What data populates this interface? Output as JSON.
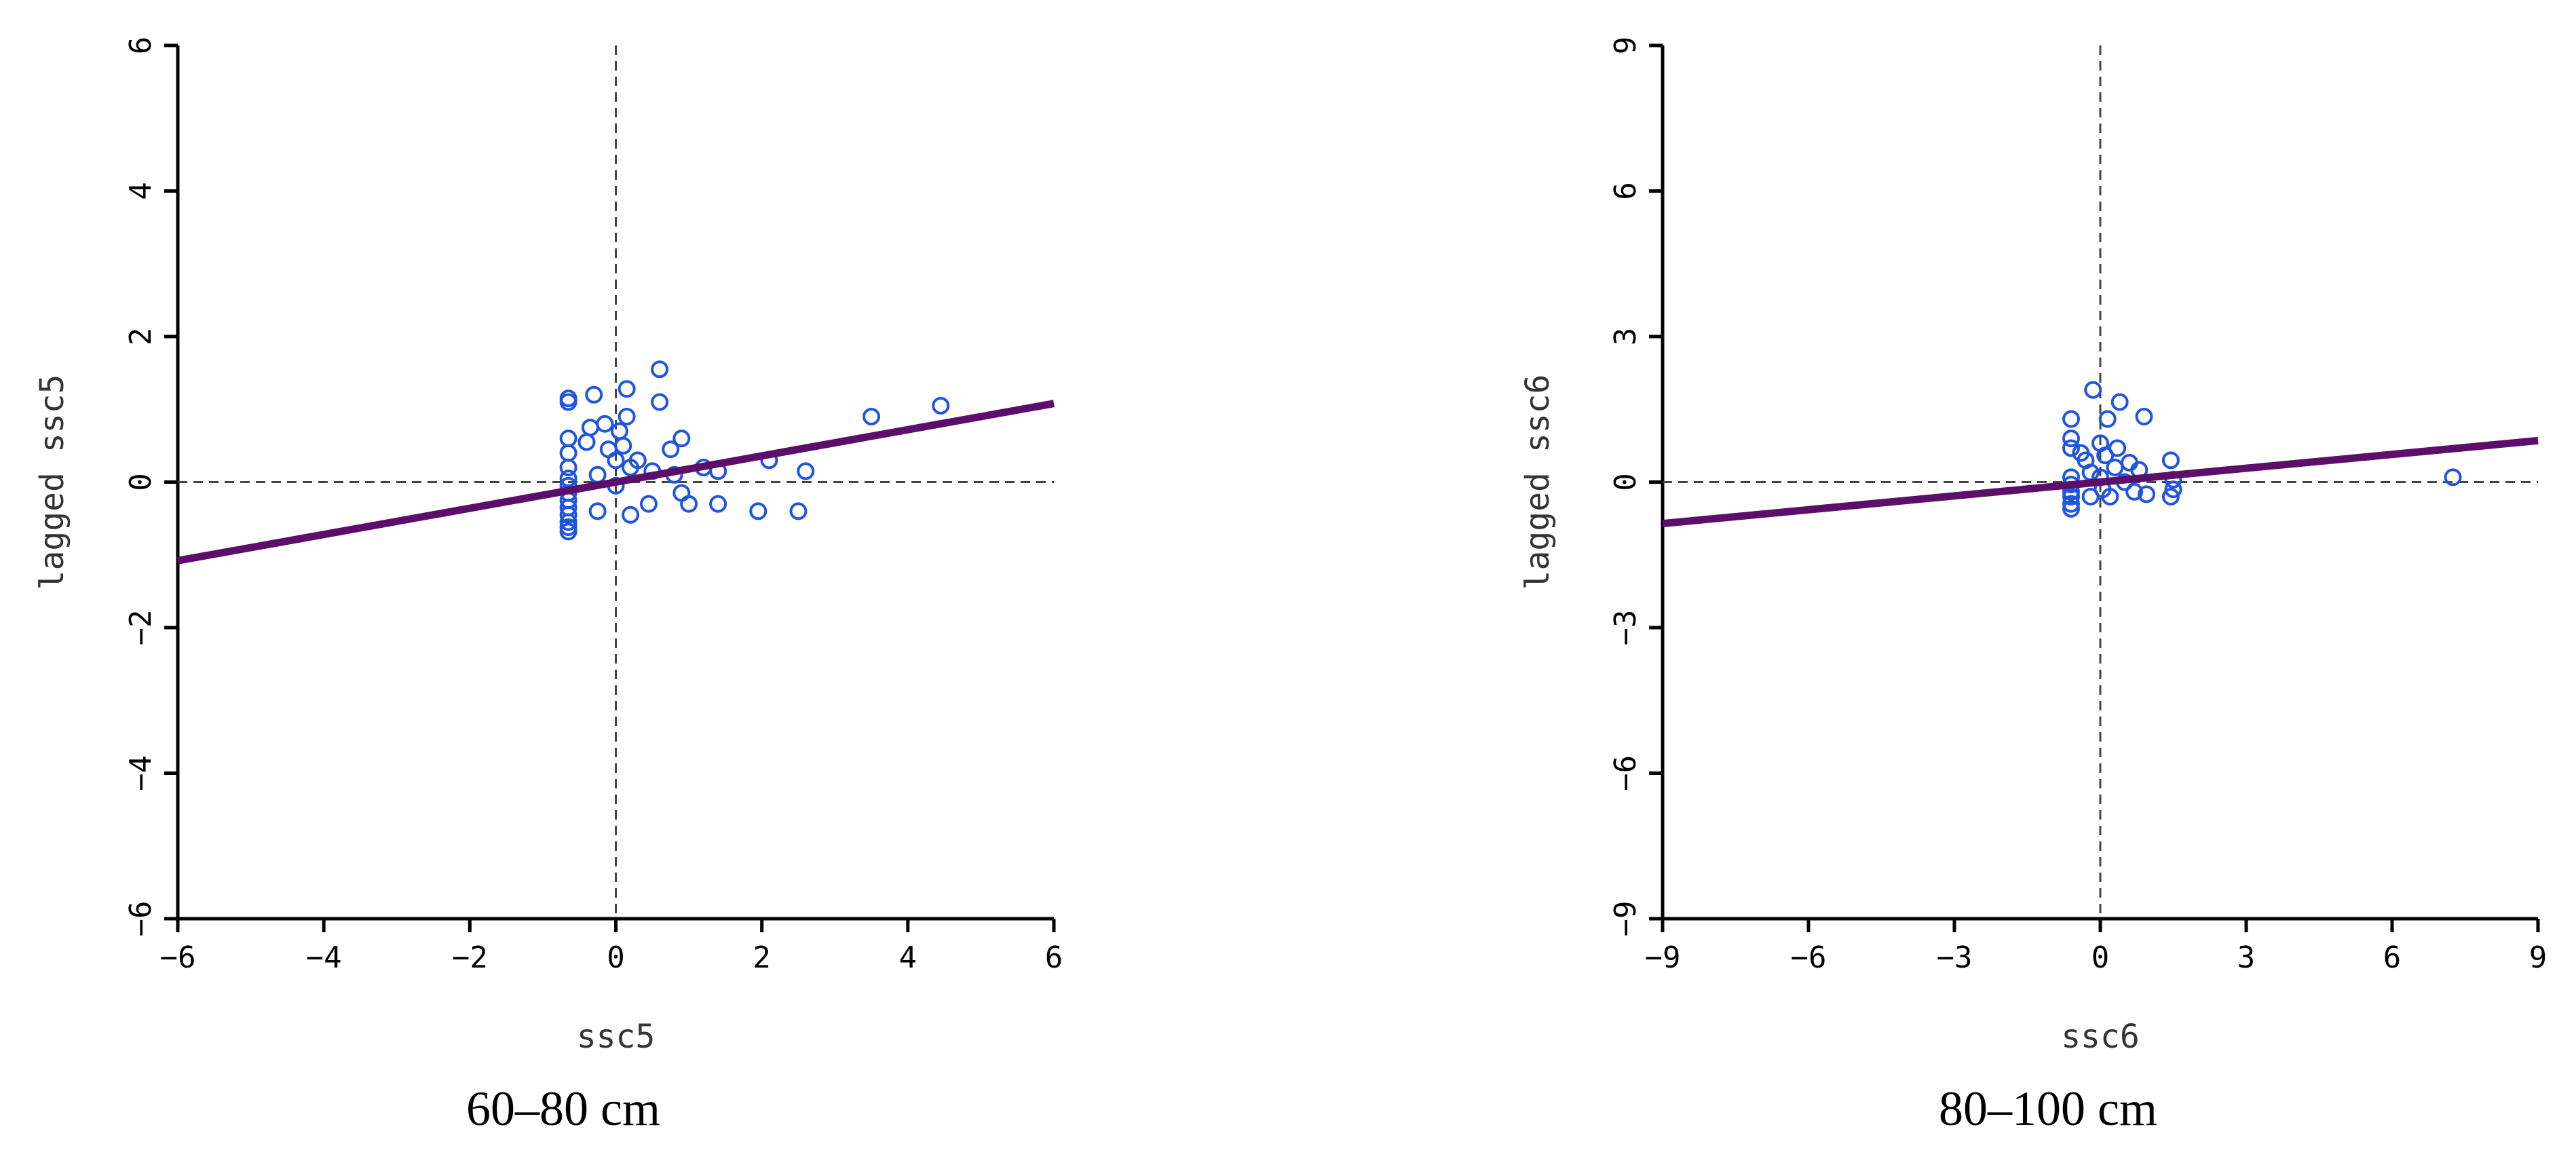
{
  "chart_data": [
    {
      "type": "scatter",
      "xlabel": "ssc5",
      "ylabel": "lagged ssc5",
      "caption": "60–80 cm",
      "xlim": [
        -6,
        6
      ],
      "ylim": [
        -6,
        6
      ],
      "xticks": [
        -6,
        -4,
        -2,
        0,
        2,
        4,
        6
      ],
      "yticks": [
        -6,
        -4,
        -2,
        0,
        2,
        4,
        6
      ],
      "xtick_labels": [
        "−6",
        "−4",
        "−2",
        "0",
        "2",
        "4",
        "6"
      ],
      "ytick_labels": [
        "−6",
        "−4",
        "−2",
        "0",
        "2",
        "4",
        "6"
      ],
      "grid": false,
      "reference_lines": {
        "x": 0,
        "y": 0
      },
      "regression": {
        "slope": 0.18,
        "intercept": 0.0
      },
      "points": [
        [
          -0.65,
          1.15
        ],
        [
          -0.65,
          1.1
        ],
        [
          -0.65,
          0.6
        ],
        [
          -0.65,
          0.4
        ],
        [
          -0.65,
          0.2
        ],
        [
          -0.65,
          0.05
        ],
        [
          -0.65,
          -0.05
        ],
        [
          -0.65,
          -0.15
        ],
        [
          -0.65,
          -0.25
        ],
        [
          -0.65,
          -0.35
        ],
        [
          -0.65,
          -0.45
        ],
        [
          -0.65,
          -0.55
        ],
        [
          -0.65,
          -0.62
        ],
        [
          -0.65,
          -0.68
        ],
        [
          -0.4,
          0.55
        ],
        [
          -0.35,
          0.75
        ],
        [
          -0.3,
          1.2
        ],
        [
          -0.25,
          0.1
        ],
        [
          -0.25,
          -0.4
        ],
        [
          -0.15,
          0.8
        ],
        [
          -0.1,
          0.45
        ],
        [
          0.0,
          0.3
        ],
        [
          0.0,
          -0.05
        ],
        [
          0.05,
          0.7
        ],
        [
          0.1,
          0.5
        ],
        [
          0.15,
          1.28
        ],
        [
          0.15,
          0.9
        ],
        [
          0.2,
          0.2
        ],
        [
          0.2,
          -0.45
        ],
        [
          0.3,
          0.3
        ],
        [
          0.45,
          -0.3
        ],
        [
          0.5,
          0.15
        ],
        [
          0.6,
          1.55
        ],
        [
          0.6,
          1.1
        ],
        [
          0.75,
          0.45
        ],
        [
          0.8,
          0.1
        ],
        [
          0.9,
          -0.15
        ],
        [
          0.9,
          0.6
        ],
        [
          1.0,
          -0.3
        ],
        [
          1.2,
          0.2
        ],
        [
          1.4,
          -0.3
        ],
        [
          1.4,
          0.15
        ],
        [
          1.95,
          -0.4
        ],
        [
          2.1,
          0.3
        ],
        [
          2.5,
          -0.4
        ],
        [
          2.6,
          0.15
        ],
        [
          3.5,
          0.9
        ],
        [
          4.45,
          1.05
        ]
      ]
    },
    {
      "type": "scatter",
      "xlabel": "ssc6",
      "ylabel": "lagged ssc6",
      "caption": "80–100 cm",
      "xlim": [
        -9,
        9
      ],
      "ylim": [
        -9,
        9
      ],
      "xticks": [
        -9,
        -6,
        -3,
        0,
        3,
        6,
        9
      ],
      "yticks": [
        -9,
        -6,
        -3,
        0,
        3,
        6,
        9
      ],
      "xtick_labels": [
        "−9",
        "−6",
        "−3",
        "0",
        "3",
        "6",
        "9"
      ],
      "ytick_labels": [
        "−9",
        "−6",
        "−3",
        "0",
        "3",
        "6",
        "9"
      ],
      "grid": false,
      "reference_lines": {
        "x": 0,
        "y": 0
      },
      "regression": {
        "slope": 0.095,
        "intercept": 0.0
      },
      "points": [
        [
          -0.6,
          1.3
        ],
        [
          -0.6,
          0.9
        ],
        [
          -0.6,
          0.7
        ],
        [
          -0.6,
          0.1
        ],
        [
          -0.6,
          -0.05
        ],
        [
          -0.6,
          -0.2
        ],
        [
          -0.6,
          -0.3
        ],
        [
          -0.6,
          -0.45
        ],
        [
          -0.6,
          -0.55
        ],
        [
          -0.4,
          0.6
        ],
        [
          -0.3,
          0.45
        ],
        [
          -0.2,
          0.2
        ],
        [
          -0.2,
          -0.3
        ],
        [
          -0.15,
          1.9
        ],
        [
          0.0,
          0.8
        ],
        [
          0.0,
          0.1
        ],
        [
          0.05,
          -0.15
        ],
        [
          0.1,
          0.55
        ],
        [
          0.15,
          1.3
        ],
        [
          0.2,
          -0.3
        ],
        [
          0.3,
          0.3
        ],
        [
          0.35,
          0.7
        ],
        [
          0.4,
          1.65
        ],
        [
          0.5,
          0.0
        ],
        [
          0.6,
          0.4
        ],
        [
          0.7,
          -0.2
        ],
        [
          0.8,
          0.25
        ],
        [
          0.9,
          1.35
        ],
        [
          0.95,
          -0.25
        ],
        [
          1.45,
          0.45
        ],
        [
          1.45,
          -0.3
        ],
        [
          1.5,
          -0.15
        ],
        [
          1.5,
          0.05
        ],
        [
          7.25,
          0.1
        ]
      ]
    }
  ]
}
